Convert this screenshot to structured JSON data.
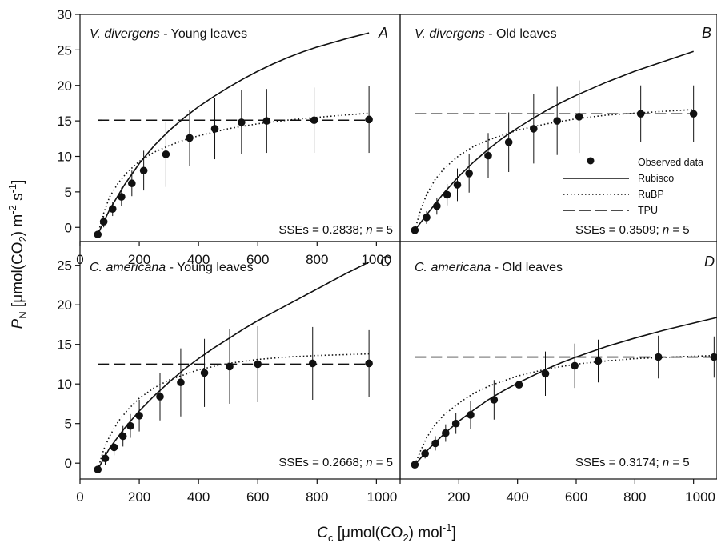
{
  "figure": {
    "xlabel": {
      "main": "C",
      "sub": "c",
      "rest_a": " [μmol(CO",
      "sub2": "2",
      "rest_b": ") mol",
      "sup": "-1",
      "rest_c": "]"
    },
    "ylabel": {
      "main": "P",
      "sub": "N",
      "rest_a": " [μmol(CO",
      "sub2": "2",
      "rest_b": ") m",
      "sup1": "-2",
      "rest_c": " s",
      "sup2": "-1",
      "rest_d": "]"
    },
    "legend": {
      "observed": "Observed data",
      "rubisco": "Rubisco",
      "rubp": "RuBP",
      "tpu": "TPU"
    },
    "colors": {
      "ink": "#111111",
      "background": "#ffffff"
    }
  },
  "chart_data": [
    {
      "type": "scatter",
      "panel": "A",
      "title_species": "V. divergens",
      "title_rest": " - Young leaves",
      "letter": "A",
      "sse_label": "SSEs = 0.2838; ",
      "n_label": "n",
      "n_value": " = 5",
      "xlim": [
        0,
        1080
      ],
      "ylim": [
        -2,
        30
      ],
      "xticks": [
        "0",
        "200",
        "400",
        "600",
        "800",
        "1000"
      ],
      "yticks": [
        "0",
        "5",
        "10",
        "15",
        "20",
        "25",
        "30"
      ],
      "observed": {
        "x": [
          60,
          80,
          110,
          140,
          175,
          215,
          290,
          370,
          455,
          545,
          630,
          790,
          975
        ],
        "y": [
          -1.0,
          0.8,
          2.6,
          4.3,
          6.2,
          8.0,
          10.3,
          12.6,
          13.9,
          14.8,
          15.0,
          15.1,
          15.2
        ],
        "err": [
          0.0,
          0.8,
          1.0,
          1.3,
          1.8,
          2.8,
          4.6,
          3.9,
          4.3,
          4.5,
          4.5,
          4.6,
          4.7
        ]
      },
      "rubisco": {
        "x": [
          60,
          100,
          150,
          200,
          250,
          300,
          350,
          400,
          450,
          500,
          550,
          600,
          650,
          700,
          750,
          800,
          850,
          900,
          975
        ],
        "y": [
          -1.0,
          2.5,
          6.0,
          9.0,
          11.5,
          13.6,
          15.4,
          17.0,
          18.4,
          19.7,
          20.9,
          22.0,
          23.0,
          23.9,
          24.7,
          25.4,
          26.0,
          26.6,
          27.4
        ]
      },
      "rubp": {
        "x": [
          60,
          80,
          100,
          130,
          160,
          200,
          250,
          300,
          350,
          400,
          500,
          600,
          700,
          800,
          975
        ],
        "y": [
          -1.0,
          2.0,
          4.3,
          6.3,
          7.8,
          9.3,
          10.6,
          11.5,
          12.3,
          12.9,
          13.9,
          14.6,
          15.1,
          15.5,
          16.1
        ]
      },
      "tpu": {
        "y": 15.1,
        "x": [
          60,
          975
        ]
      }
    },
    {
      "type": "scatter",
      "panel": "B",
      "title_species": "V. divergens",
      "title_rest": " - Old leaves",
      "letter": "B",
      "sse_label": "SSEs = 0.3509; ",
      "n_label": "n",
      "n_value": " = 5",
      "xlim": [
        0,
        1080
      ],
      "ylim": [
        -2,
        30
      ],
      "xticks": [],
      "yticks": [],
      "observed": {
        "x": [
          50,
          90,
          125,
          160,
          195,
          235,
          300,
          370,
          455,
          535,
          610,
          820,
          1000
        ],
        "y": [
          -0.4,
          1.4,
          3.0,
          4.6,
          6.0,
          7.6,
          10.1,
          12.0,
          13.9,
          15.0,
          15.6,
          16.0,
          16.0
        ],
        "err": [
          0.0,
          0.9,
          1.2,
          1.5,
          2.3,
          2.7,
          3.2,
          4.2,
          4.9,
          4.8,
          5.1,
          4.0,
          4.0
        ]
      },
      "rubisco": {
        "x": [
          50,
          100,
          150,
          200,
          250,
          300,
          350,
          400,
          450,
          500,
          550,
          600,
          650,
          700,
          750,
          800,
          850,
          900,
          1000
        ],
        "y": [
          -0.4,
          2.3,
          4.9,
          7.2,
          9.2,
          11.0,
          12.6,
          14.0,
          15.3,
          16.5,
          17.6,
          18.6,
          19.5,
          20.4,
          21.2,
          22.0,
          22.7,
          23.4,
          24.8
        ]
      },
      "rubp": {
        "x": [
          50,
          70,
          90,
          120,
          150,
          200,
          250,
          300,
          400,
          500,
          600,
          700,
          800,
          1000
        ],
        "y": [
          -0.4,
          2.5,
          4.6,
          6.8,
          8.3,
          10.1,
          11.4,
          12.3,
          13.7,
          14.6,
          15.3,
          15.8,
          16.1,
          16.6
        ]
      },
      "tpu": {
        "y": 16.0,
        "x": [
          50,
          1000
        ]
      }
    },
    {
      "type": "scatter",
      "panel": "C",
      "title_species": "C. americana",
      "title_rest": " - Young leaves",
      "letter": "C",
      "sse_label": "SSEs = 0.2668; ",
      "n_label": "n",
      "n_value": " = 5",
      "xlim": [
        0,
        1080
      ],
      "ylim": [
        -2,
        28
      ],
      "xticks": [
        "0",
        "200",
        "400",
        "600",
        "800",
        "1000"
      ],
      "yticks": [
        "0",
        "5",
        "10",
        "15",
        "20",
        "25"
      ],
      "observed": {
        "x": [
          60,
          85,
          115,
          145,
          170,
          200,
          270,
          340,
          420,
          505,
          600,
          785,
          975
        ],
        "y": [
          -0.8,
          0.6,
          2.0,
          3.4,
          4.7,
          6.0,
          8.4,
          10.2,
          11.4,
          12.2,
          12.5,
          12.6,
          12.6
        ],
        "err": [
          0.0,
          0.8,
          1.0,
          1.3,
          1.5,
          2.0,
          3.0,
          4.3,
          4.3,
          4.7,
          4.8,
          4.6,
          4.2
        ]
      },
      "rubisco": {
        "x": [
          60,
          100,
          150,
          200,
          250,
          300,
          350,
          400,
          450,
          500,
          550,
          600,
          650,
          700,
          750,
          800,
          850,
          900,
          975
        ],
        "y": [
          -0.8,
          1.9,
          4.4,
          6.6,
          8.5,
          10.2,
          11.8,
          13.2,
          14.5,
          15.7,
          16.9,
          18.0,
          19.0,
          20.0,
          21.0,
          22.0,
          23.0,
          24.0,
          25.4
        ]
      },
      "rubp": {
        "x": [
          60,
          80,
          100,
          130,
          160,
          200,
          250,
          300,
          400,
          500,
          600,
          700,
          800,
          975
        ],
        "y": [
          -0.8,
          1.7,
          3.4,
          5.3,
          6.7,
          8.2,
          9.5,
          10.5,
          11.8,
          12.6,
          13.1,
          13.4,
          13.6,
          13.8
        ]
      },
      "tpu": {
        "y": 12.5,
        "x": [
          60,
          975
        ]
      }
    },
    {
      "type": "scatter",
      "panel": "D",
      "title_species": "C. americana",
      "title_rest": " - Old leaves",
      "letter": "D",
      "sse_label": "SSEs = 0.3174; ",
      "n_label": "n",
      "n_value": " = 5",
      "xlim": [
        0,
        1080
      ],
      "ylim": [
        -2,
        28
      ],
      "xticks": [
        "",
        "200",
        "400",
        "600",
        "800",
        "1000"
      ],
      "yticks": [],
      "observed": {
        "x": [
          50,
          85,
          120,
          155,
          190,
          240,
          320,
          405,
          495,
          595,
          675,
          880,
          1070
        ],
        "y": [
          -0.2,
          1.2,
          2.5,
          3.8,
          5.0,
          6.1,
          8.0,
          9.9,
          11.3,
          12.3,
          12.9,
          13.4,
          13.4
        ],
        "err": [
          0.0,
          0.6,
          0.9,
          1.1,
          1.3,
          1.8,
          2.5,
          3.0,
          2.8,
          2.8,
          2.7,
          2.7,
          2.6
        ]
      },
      "rubisco": {
        "x": [
          50,
          100,
          150,
          200,
          250,
          300,
          350,
          400,
          450,
          500,
          550,
          600,
          700,
          800,
          900,
          1000,
          1080
        ],
        "y": [
          -0.2,
          1.9,
          3.7,
          5.3,
          6.7,
          8.0,
          9.1,
          10.1,
          11.0,
          11.9,
          12.7,
          13.4,
          14.7,
          15.8,
          16.8,
          17.7,
          18.4
        ]
      },
      "rubp": {
        "x": [
          50,
          70,
          90,
          120,
          150,
          200,
          250,
          300,
          400,
          500,
          600,
          700,
          800,
          1000,
          1080
        ],
        "y": [
          -0.2,
          1.6,
          3.2,
          4.9,
          6.1,
          7.6,
          8.8,
          9.7,
          11.0,
          11.9,
          12.5,
          12.9,
          13.2,
          13.5,
          13.6
        ]
      },
      "tpu": {
        "y": 13.4,
        "x": [
          50,
          1080
        ]
      }
    }
  ]
}
